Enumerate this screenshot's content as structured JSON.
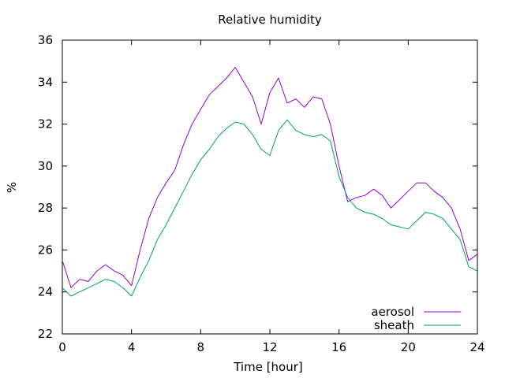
{
  "chart_data": {
    "type": "line",
    "title": "Relative humidity",
    "xlabel": "Time [hour]",
    "ylabel": "%",
    "xlim": [
      0,
      24
    ],
    "ylim": [
      22,
      36
    ],
    "xticks": [
      0,
      4,
      8,
      12,
      16,
      20,
      24
    ],
    "yticks": [
      22,
      24,
      26,
      28,
      30,
      32,
      34,
      36
    ],
    "grid": false,
    "legend_position": "bottom-right",
    "series": [
      {
        "name": "aerosol",
        "color": "#9400d3",
        "x": [
          0,
          0.5,
          1,
          1.5,
          2,
          2.5,
          3,
          3.5,
          4,
          4.5,
          5,
          5.5,
          6,
          6.5,
          7,
          7.5,
          8,
          8.5,
          9,
          9.5,
          10,
          10.5,
          11,
          11.5,
          12,
          12.5,
          13,
          13.5,
          14,
          14.5,
          15,
          15.5,
          16,
          16.5,
          17,
          17.5,
          18,
          18.5,
          19,
          19.5,
          20,
          20.5,
          21,
          21.5,
          22,
          22.5,
          23,
          23.5,
          24
        ],
        "y": [
          25.5,
          24.2,
          24.6,
          24.5,
          25.0,
          25.3,
          25.0,
          24.8,
          24.3,
          26.0,
          27.5,
          28.5,
          29.2,
          29.8,
          31.0,
          32.0,
          32.7,
          33.4,
          33.8,
          34.2,
          34.7,
          34.0,
          33.3,
          32.0,
          33.5,
          34.2,
          33.0,
          33.2,
          32.8,
          33.3,
          33.2,
          32.0,
          30.0,
          28.3,
          28.5,
          28.6,
          28.9,
          28.6,
          28.0,
          28.4,
          28.8,
          29.2,
          29.2,
          28.8,
          28.5,
          28.0,
          27.0,
          25.5,
          25.8
        ]
      },
      {
        "name": "sheath",
        "color": "#009e73",
        "x": [
          0,
          0.5,
          1,
          1.5,
          2,
          2.5,
          3,
          3.5,
          4,
          4.5,
          5,
          5.5,
          6,
          6.5,
          7,
          7.5,
          8,
          8.5,
          9,
          9.5,
          10,
          10.5,
          11,
          11.5,
          12,
          12.5,
          13,
          13.5,
          14,
          14.5,
          15,
          15.5,
          16,
          16.5,
          17,
          17.5,
          18,
          18.5,
          19,
          19.5,
          20,
          20.5,
          21,
          21.5,
          22,
          22.5,
          23,
          23.5,
          24
        ],
        "y": [
          24.2,
          23.8,
          24.0,
          24.2,
          24.4,
          24.6,
          24.5,
          24.2,
          23.8,
          24.7,
          25.5,
          26.5,
          27.2,
          28.0,
          28.8,
          29.6,
          30.3,
          30.8,
          31.4,
          31.8,
          32.1,
          32.0,
          31.5,
          30.8,
          30.5,
          31.7,
          32.2,
          31.7,
          31.5,
          31.4,
          31.5,
          31.2,
          29.5,
          28.5,
          28.0,
          27.8,
          27.7,
          27.5,
          27.2,
          27.1,
          27.0,
          27.4,
          27.8,
          27.7,
          27.5,
          27.0,
          26.5,
          25.2,
          25.0
        ]
      }
    ]
  }
}
